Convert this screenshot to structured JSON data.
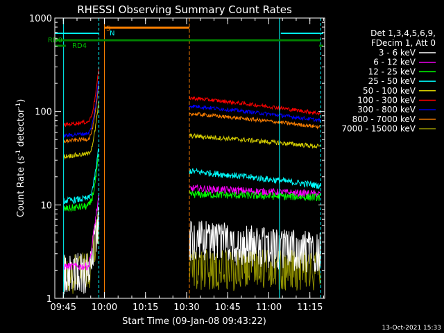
{
  "chart_data": {
    "type": "line",
    "title": "RHESSI Observing Summary Count Rates",
    "xlabel": "Start Time (09-Jan-08 09:43:22)",
    "ylabel_main": "Count Rate (s",
    "ylabel_sup1": "-1",
    "ylabel_mid": " detector",
    "ylabel_sup2": "-1",
    "ylabel_end": ")",
    "yscale": "log",
    "ylim": [
      1,
      1000
    ],
    "xlim_minutes": [
      -1.5,
      97
    ],
    "x_ticks": [
      {
        "label": "09:45",
        "min": 1.6
      },
      {
        "label": "10:00",
        "min": 16.6
      },
      {
        "label": "10:15",
        "min": 31.6
      },
      {
        "label": "10:30",
        "min": 46.6
      },
      {
        "label": "10:45",
        "min": 61.6
      },
      {
        "label": "11:00",
        "min": 76.6
      },
      {
        "label": "11:15",
        "min": 91.6
      }
    ],
    "y_ticks": [
      {
        "label": "1",
        "value": 1
      },
      {
        "label": "10",
        "value": 10
      },
      {
        "label": "100",
        "value": 100
      },
      {
        "label": "1000",
        "value": 1000
      }
    ],
    "legend_header": [
      "Det 1,3,4,5,6,9,",
      "FDecim 1, Att 0"
    ],
    "series": [
      {
        "name": "3 - 6 keV",
        "color": "#ffffff"
      },
      {
        "name": "6 - 12 keV",
        "color": "#ff00ff"
      },
      {
        "name": "12 - 25 keV",
        "color": "#00ff00"
      },
      {
        "name": "25 - 50 keV",
        "color": "#00ffff"
      },
      {
        "name": "50 - 100 keV",
        "color": "#d8d000"
      },
      {
        "name": "100 - 300 keV",
        "color": "#ff0000"
      },
      {
        "name": "300 - 800 keV",
        "color": "#0000ff"
      },
      {
        "name": "800 - 7000 keV",
        "color": "#ff8000"
      },
      {
        "name": "7000 - 15000 keV",
        "color": "#909000"
      }
    ],
    "flag_labels": {
      "rd0": "RD0",
      "rd4": "RD4",
      "s": "S",
      "n": "N"
    },
    "footer_date": "13-Oct-2021 15:33"
  }
}
